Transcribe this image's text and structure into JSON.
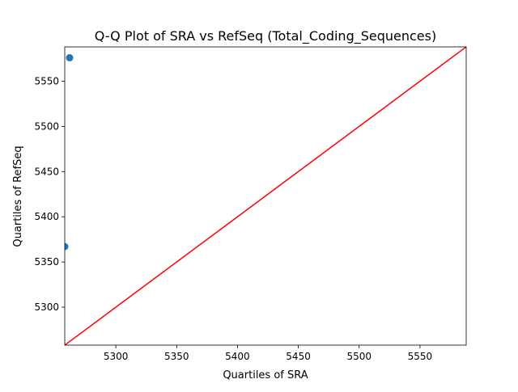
{
  "chart_data": {
    "type": "scatter",
    "title": "Q-Q Plot of SRA vs RefSeq (Total_Coding_Sequences)",
    "xlabel": "Quartiles of SRA",
    "ylabel": "Quartiles of RefSeq",
    "xlim": [
      5258,
      5588
    ],
    "ylim": [
      5258,
      5588
    ],
    "xticks": [
      5300,
      5350,
      5400,
      5450,
      5500,
      5550
    ],
    "yticks": [
      5300,
      5350,
      5400,
      5450,
      5500,
      5550
    ],
    "grid": false,
    "points": [
      {
        "x": 5258,
        "y": 5367
      },
      {
        "x": 5262,
        "y": 5576
      }
    ],
    "reference_line": {
      "from": [
        5258,
        5258
      ],
      "to": [
        5588,
        5588
      ]
    },
    "colors": {
      "points": "#1f77b4",
      "reference_line": "#ff0000"
    }
  }
}
